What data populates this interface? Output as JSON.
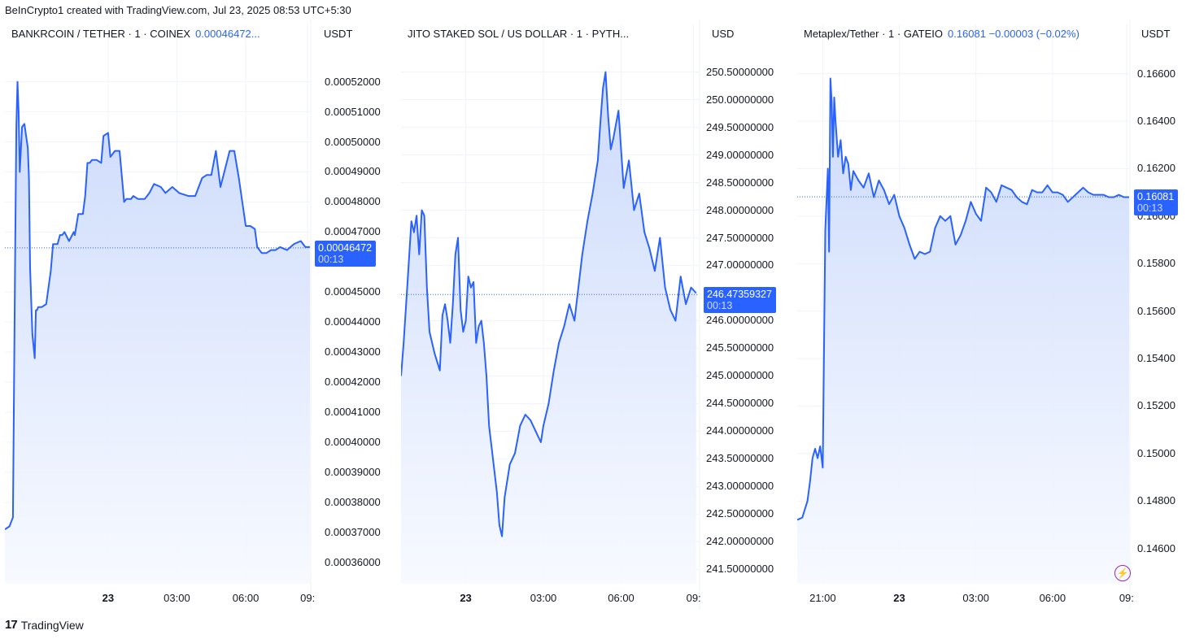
{
  "header": {
    "text": "BeInCrypto1 created with TradingView.com, Jul 23, 2025 08:53 UTC+5:30"
  },
  "footer": {
    "logo": "17",
    "brand": "TradingView"
  },
  "colors": {
    "line": "#2962ff",
    "fill_top": "#c9d8fb",
    "fill_bottom": "#f6f9ff",
    "grid": "#f0f3fa",
    "badge": "#2962ff"
  },
  "chart_data": [
    {
      "type": "area",
      "symbol": "BANKRCOIN / TETHER · 1 · COINEX",
      "title_value": "0.00046472...",
      "unit": "USDT",
      "yticks": [
        "0.00052000",
        "0.00051000",
        "0.00050000",
        "0.00049000",
        "0.00048000",
        "0.00047000",
        "0.00045000",
        "0.00044000",
        "0.00043000",
        "0.00042000",
        "0.00041000",
        "0.00040000",
        "0.00039000",
        "0.00038000",
        "0.00037000",
        "0.00036000"
      ],
      "ytick_values": [
        0.00052,
        0.00051,
        0.0005,
        0.00049,
        0.00048,
        0.00047,
        0.00045,
        0.00044,
        0.00043,
        0.00042,
        0.00041,
        0.0004,
        0.00039,
        0.00038,
        0.00037,
        0.00036
      ],
      "ylim": [
        0.000354,
        0.000531
      ],
      "xlim": [
        0,
        13.3
      ],
      "xticks": [
        {
          "label": "23",
          "x": 4.5,
          "bold": true
        },
        {
          "label": "03:00",
          "x": 7.5
        },
        {
          "label": "06:00",
          "x": 10.5
        },
        {
          "label": "09:",
          "x": 13.2
        }
      ],
      "last_value": 0.00046472,
      "badge": {
        "price": "0.00046472",
        "time": "00:13"
      },
      "x": [
        0,
        0.2,
        0.35,
        0.45,
        0.5,
        0.55,
        0.6,
        0.65,
        0.75,
        0.85,
        1.0,
        1.05,
        1.1,
        1.2,
        1.3,
        1.35,
        1.4,
        1.45,
        1.6,
        1.8,
        2.0,
        2.1,
        2.2,
        2.3,
        2.4,
        2.5,
        2.6,
        2.8,
        3.0,
        3.05,
        3.2,
        3.4,
        3.5,
        3.6,
        3.7,
        3.8,
        4.0,
        4.2,
        4.3,
        4.5,
        4.6,
        4.8,
        5.0,
        5.2,
        5.3,
        5.5,
        5.6,
        5.8,
        6.0,
        6.1,
        6.3,
        6.5,
        6.8,
        7.0,
        7.3,
        7.6,
        8.0,
        8.3,
        8.6,
        8.8,
        9.0,
        9.2,
        9.4,
        9.6,
        9.8,
        10.0,
        10.2,
        10.5,
        10.7,
        10.9,
        11.0,
        11.2,
        11.4,
        11.6,
        11.8,
        12.0,
        12.3,
        12.6,
        12.9,
        13.1,
        13.3
      ],
      "y": [
        0.000371,
        0.000372,
        0.000375,
        0.000465,
        0.000505,
        0.00052,
        0.00051,
        0.00049,
        0.000505,
        0.000506,
        0.000498,
        0.000488,
        0.000458,
        0.000436,
        0.000428,
        0.000444,
        0.000444,
        0.000445,
        0.000445,
        0.000446,
        0.000457,
        0.000466,
        0.000466,
        0.000466,
        0.000469,
        0.000469,
        0.00047,
        0.000467,
        0.00047,
        0.000469,
        0.000476,
        0.000476,
        0.000482,
        0.000493,
        0.000493,
        0.000494,
        0.000494,
        0.000493,
        0.000502,
        0.000503,
        0.000495,
        0.000497,
        0.000497,
        0.00048,
        0.000481,
        0.000481,
        0.000482,
        0.000481,
        0.000481,
        0.000481,
        0.000483,
        0.000486,
        0.000485,
        0.000483,
        0.000485,
        0.000483,
        0.000482,
        0.000482,
        0.000488,
        0.000489,
        0.000489,
        0.000497,
        0.000485,
        0.000491,
        0.000497,
        0.000497,
        0.000488,
        0.000472,
        0.000472,
        0.000471,
        0.000465,
        0.000463,
        0.000463,
        0.000464,
        0.000464,
        0.000465,
        0.000464,
        0.000466,
        0.000467,
        0.000465,
        0.000465
      ]
    },
    {
      "type": "area",
      "symbol": "JITO STAKED SOL / US DOLLAR · 1 · PYTH...",
      "title_value": "",
      "unit": "USD",
      "yticks": [
        "250.50000000",
        "250.00000000",
        "249.50000000",
        "249.00000000",
        "248.50000000",
        "248.00000000",
        "247.50000000",
        "247.00000000",
        "246.00000000",
        "245.50000000",
        "245.00000000",
        "244.50000000",
        "244.00000000",
        "243.50000000",
        "243.00000000",
        "242.50000000",
        "242.00000000",
        "241.50000000"
      ],
      "ytick_values": [
        250.5,
        250.0,
        249.5,
        249.0,
        248.5,
        248.0,
        247.5,
        247.0,
        246.0,
        245.5,
        245.0,
        244.5,
        244.0,
        243.5,
        243.0,
        242.5,
        242.0,
        241.5
      ],
      "ylim": [
        241.3,
        250.92
      ],
      "xlim": [
        0,
        11.5
      ],
      "xticks": [
        {
          "label": "23",
          "x": 2.5,
          "bold": true
        },
        {
          "label": "03:00",
          "x": 5.5
        },
        {
          "label": "06:00",
          "x": 8.5
        },
        {
          "label": "09:",
          "x": 11.3
        }
      ],
      "last_value": 246.47359327,
      "badge": {
        "price": "246.47359327",
        "time": "00:13"
      },
      "x": [
        0,
        0.1,
        0.25,
        0.4,
        0.5,
        0.6,
        0.7,
        0.8,
        0.9,
        1.0,
        1.1,
        1.3,
        1.5,
        1.6,
        1.7,
        1.8,
        1.9,
        2.0,
        2.1,
        2.2,
        2.3,
        2.4,
        2.5,
        2.6,
        2.7,
        2.8,
        2.9,
        3.0,
        3.1,
        3.2,
        3.3,
        3.4,
        3.5,
        3.6,
        3.7,
        3.8,
        3.9,
        4.0,
        4.2,
        4.4,
        4.6,
        4.8,
        5.0,
        5.2,
        5.4,
        5.5,
        5.7,
        5.9,
        6.1,
        6.3,
        6.5,
        6.7,
        6.9,
        7.0,
        7.2,
        7.4,
        7.6,
        7.7,
        7.8,
        7.9,
        8.0,
        8.1,
        8.2,
        8.4,
        8.6,
        8.8,
        9.0,
        9.2,
        9.4,
        9.6,
        9.8,
        10.0,
        10.2,
        10.4,
        10.6,
        10.8,
        11.0,
        11.2,
        11.4
      ],
      "y": [
        245.0,
        245.6,
        246.7,
        247.8,
        247.6,
        247.9,
        247.2,
        248.0,
        247.9,
        246.6,
        245.8,
        245.4,
        245.1,
        246.1,
        246.3,
        246.0,
        245.6,
        246.3,
        247.2,
        247.5,
        246.2,
        245.8,
        246.0,
        246.8,
        246.6,
        246.7,
        245.6,
        245.9,
        246.0,
        245.6,
        245.0,
        244.1,
        243.7,
        243.3,
        242.9,
        242.3,
        242.1,
        242.8,
        243.4,
        243.6,
        244.1,
        244.3,
        244.2,
        244.0,
        243.8,
        244.1,
        244.5,
        245.1,
        245.6,
        245.9,
        246.3,
        246.0,
        246.8,
        247.2,
        247.8,
        248.3,
        248.9,
        249.6,
        250.2,
        250.5,
        249.7,
        249.1,
        249.3,
        249.8,
        248.4,
        248.9,
        248.0,
        248.3,
        247.6,
        247.3,
        246.9,
        247.5,
        246.6,
        246.2,
        246.0,
        246.8,
        246.3,
        246.6,
        246.5
      ]
    },
    {
      "type": "area",
      "symbol": "Metaplex/Tether · 1 · GATEIO",
      "title_value": "0.16081  −0.00003 (−0.02%)",
      "unit": "USDT",
      "yticks": [
        "0.16600",
        "0.16400",
        "0.16200",
        "0.16000",
        "0.15800",
        "0.15600",
        "0.15400",
        "0.15200",
        "0.15000",
        "0.14800",
        "0.14600"
      ],
      "ytick_values": [
        0.166,
        0.164,
        0.162,
        0.16,
        0.158,
        0.156,
        0.154,
        0.152,
        0.15,
        0.148,
        0.146
      ],
      "ylim": [
        0.14465,
        0.16705
      ],
      "xlim": [
        0,
        13.0
      ],
      "xticks": [
        {
          "label": "21:00",
          "x": 1.0
        },
        {
          "label": "23",
          "x": 4.0,
          "bold": true
        },
        {
          "label": "03:00",
          "x": 7.0
        },
        {
          "label": "06:00",
          "x": 10.0
        },
        {
          "label": "09:",
          "x": 12.9
        }
      ],
      "last_value": 0.16081,
      "badge": {
        "price": "0.16081",
        "time": "00:13"
      },
      "x": [
        0,
        0.2,
        0.4,
        0.5,
        0.6,
        0.7,
        0.8,
        0.9,
        1.0,
        1.1,
        1.2,
        1.25,
        1.3,
        1.35,
        1.4,
        1.45,
        1.5,
        1.6,
        1.7,
        1.8,
        1.9,
        2.0,
        2.1,
        2.2,
        2.4,
        2.6,
        2.8,
        3.0,
        3.2,
        3.4,
        3.6,
        3.8,
        4.0,
        4.2,
        4.4,
        4.6,
        4.8,
        5.0,
        5.2,
        5.4,
        5.6,
        5.8,
        6.0,
        6.2,
        6.4,
        6.6,
        6.8,
        7.0,
        7.2,
        7.4,
        7.6,
        7.8,
        8.0,
        8.2,
        8.4,
        8.6,
        8.8,
        9.0,
        9.2,
        9.4,
        9.6,
        9.8,
        10.0,
        10.2,
        10.4,
        10.6,
        10.8,
        11.0,
        11.2,
        11.4,
        11.6,
        11.8,
        12.0,
        12.2,
        12.4,
        12.6,
        12.8,
        13.0
      ],
      "y": [
        0.1472,
        0.1473,
        0.148,
        0.1488,
        0.1498,
        0.1502,
        0.1498,
        0.1503,
        0.1494,
        0.1594,
        0.162,
        0.1585,
        0.1658,
        0.1648,
        0.1625,
        0.165,
        0.164,
        0.1625,
        0.1632,
        0.1618,
        0.1625,
        0.1622,
        0.1611,
        0.1619,
        0.1615,
        0.1612,
        0.1618,
        0.1608,
        0.1615,
        0.1611,
        0.1605,
        0.1609,
        0.16,
        0.1595,
        0.1588,
        0.1582,
        0.1585,
        0.1584,
        0.1585,
        0.1595,
        0.16,
        0.1598,
        0.16,
        0.1588,
        0.1592,
        0.1598,
        0.1606,
        0.1601,
        0.1598,
        0.1612,
        0.161,
        0.1606,
        0.1613,
        0.1612,
        0.1611,
        0.1608,
        0.1606,
        0.1605,
        0.1611,
        0.161,
        0.161,
        0.1613,
        0.161,
        0.161,
        0.1609,
        0.1606,
        0.1608,
        0.161,
        0.1612,
        0.161,
        0.1609,
        0.1609,
        0.1609,
        0.1608,
        0.1608,
        0.1609,
        0.1608,
        0.1608
      ]
    }
  ]
}
